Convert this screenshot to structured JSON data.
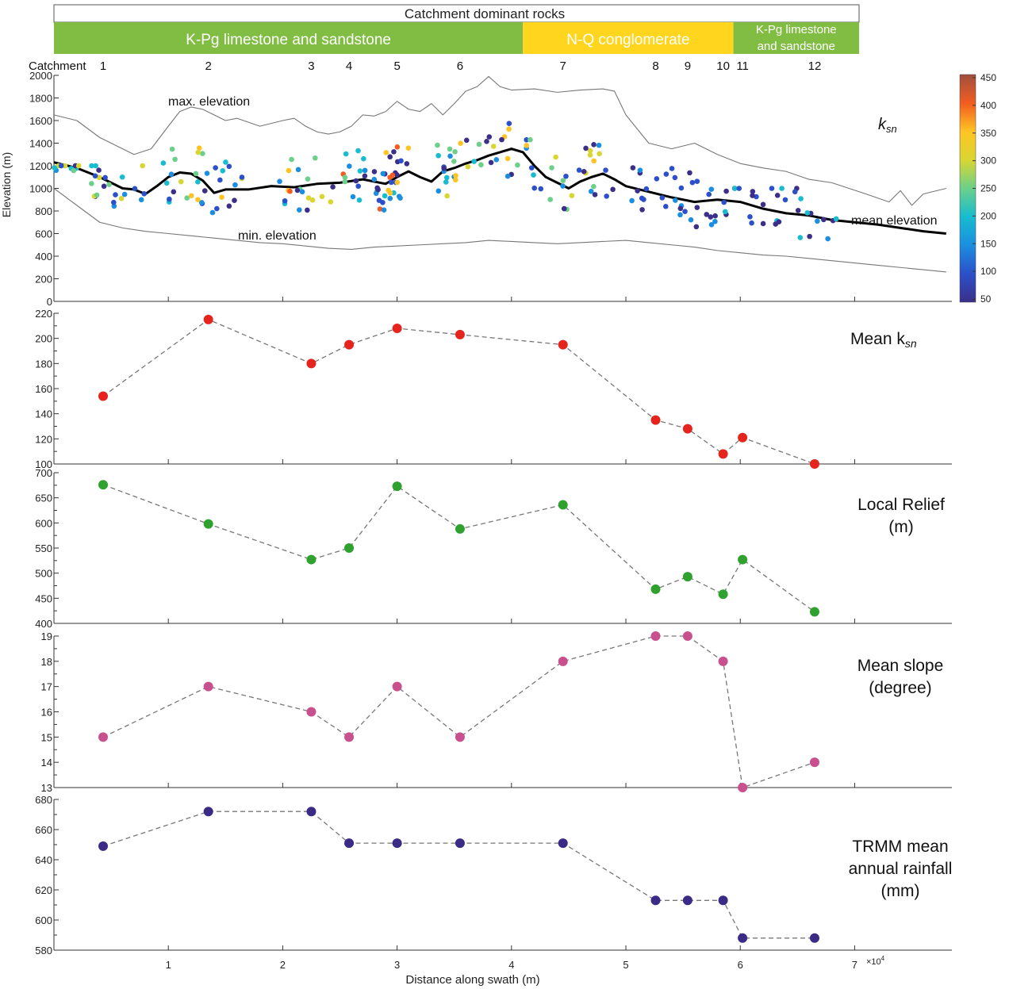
{
  "chart_data": [
    {
      "type": "table",
      "title": "Catchment dominant rocks",
      "segments": [
        {
          "label": "K-Pg limestone and sandstone",
          "x_start": 0,
          "x_end": 41000,
          "color": "#80bd42"
        },
        {
          "label": "N-Q conglomerate",
          "x_start": 41000,
          "x_end": 59400,
          "color": "#ffd51e"
        },
        {
          "label_lines": [
            "K-Pg limestone",
            "and sandstone"
          ],
          "x_start": 59400,
          "x_end": 70500,
          "color": "#80bd42"
        }
      ]
    },
    {
      "type": "line",
      "ylabel": "Elevation (m)",
      "ylim": [
        0,
        2000
      ],
      "xlim": [
        0,
        78500
      ],
      "yticks": [
        0,
        200,
        400,
        600,
        800,
        1000,
        1200,
        1400,
        1600,
        1800,
        2000
      ],
      "catchment_label": "Catchment",
      "catchments": [
        {
          "id": "1",
          "x": 4300
        },
        {
          "id": "2",
          "x": 13500
        },
        {
          "id": "3",
          "x": 22500
        },
        {
          "id": "4",
          "x": 25800
        },
        {
          "id": "5",
          "x": 30000
        },
        {
          "id": "6",
          "x": 35500
        },
        {
          "id": "7",
          "x": 44500
        },
        {
          "id": "8",
          "x": 52600
        },
        {
          "id": "9",
          "x": 55400
        },
        {
          "id": "10",
          "x": 58500
        },
        {
          "id": "11",
          "x": 60200
        },
        {
          "id": "12",
          "x": 66500
        }
      ],
      "series": [
        {
          "name": "max. elevation",
          "color": "#777777",
          "x": [
            0,
            2000,
            4000,
            7000,
            8500,
            10000,
            11000,
            12000,
            13000,
            14000,
            15000,
            16000,
            18000,
            20000,
            21000,
            22000,
            23000,
            24000,
            25000,
            26000,
            27000,
            28000,
            29000,
            30000,
            31000,
            32000,
            33000,
            34000,
            35000,
            36000,
            37000,
            38000,
            39000,
            40000,
            42000,
            44000,
            46000,
            48000,
            49000,
            50000,
            52000,
            54000,
            56000,
            58000,
            60000,
            62000,
            64000,
            66000,
            68000,
            71000,
            73000,
            74000,
            75000,
            76000,
            78000
          ],
          "y": [
            1650,
            1600,
            1450,
            1300,
            1350,
            1550,
            1680,
            1720,
            1700,
            1650,
            1600,
            1620,
            1550,
            1600,
            1620,
            1550,
            1500,
            1480,
            1500,
            1550,
            1650,
            1640,
            1680,
            1770,
            1700,
            1680,
            1750,
            1650,
            1750,
            1860,
            1900,
            1990,
            1900,
            1870,
            1880,
            1850,
            1870,
            1880,
            1860,
            1650,
            1400,
            1350,
            1400,
            1300,
            1220,
            1180,
            1150,
            1080,
            1050,
            950,
            880,
            980,
            850,
            950,
            1000
          ]
        },
        {
          "name": "mean elevation",
          "color": "#000000",
          "x": [
            0,
            2000,
            4000,
            6000,
            7000,
            8000,
            9000,
            10000,
            11000,
            12000,
            13000,
            14000,
            15000,
            17000,
            19000,
            21000,
            23000,
            25000,
            27000,
            29000,
            30000,
            31000,
            32000,
            33000,
            34000,
            35000,
            36000,
            37000,
            38000,
            39000,
            40000,
            41000,
            42000,
            43000,
            44000,
            45000,
            46000,
            47000,
            48000,
            49000,
            50000,
            52000,
            54000,
            56000,
            58000,
            60000,
            62000,
            64000,
            66000,
            68000,
            70000,
            72000,
            74000,
            76000,
            78000
          ],
          "y": [
            1230,
            1180,
            1100,
            1000,
            990,
            950,
            1020,
            1100,
            1140,
            1130,
            1070,
            960,
            990,
            990,
            1020,
            1010,
            1040,
            1050,
            1080,
            1040,
            1100,
            1150,
            1100,
            1060,
            1150,
            1180,
            1220,
            1250,
            1290,
            1320,
            1350,
            1320,
            1200,
            1100,
            1050,
            1000,
            1060,
            1100,
            1130,
            1080,
            1020,
            970,
            920,
            880,
            900,
            880,
            820,
            780,
            760,
            720,
            700,
            680,
            650,
            620,
            600
          ]
        },
        {
          "name": "min. elevation",
          "color": "#777777",
          "x": [
            0,
            2000,
            4000,
            6000,
            8000,
            10000,
            12000,
            14000,
            16000,
            18000,
            20000,
            22000,
            24000,
            26000,
            28000,
            30000,
            32000,
            34000,
            36000,
            38000,
            40000,
            42000,
            44000,
            46000,
            48000,
            50000,
            52000,
            54000,
            56000,
            58000,
            60000,
            62000,
            64000,
            66000,
            68000,
            70000,
            72000,
            74000,
            76000,
            78000
          ],
          "y": [
            1000,
            850,
            700,
            650,
            620,
            600,
            580,
            560,
            540,
            520,
            510,
            490,
            470,
            460,
            480,
            490,
            500,
            510,
            520,
            540,
            530,
            520,
            510,
            520,
            530,
            540,
            520,
            500,
            480,
            450,
            430,
            410,
            400,
            380,
            360,
            340,
            320,
            300,
            280,
            260
          ]
        }
      ],
      "points_color_scale": {
        "label": "ksn",
        "label_main": "k",
        "label_sub": "sn",
        "ticks": [
          50,
          100,
          150,
          200,
          250,
          300,
          350,
          400,
          450
        ],
        "colors": [
          "#3b2f8a",
          "#2c50c9",
          "#1b8ee0",
          "#17bccf",
          "#6cd08b",
          "#d9d632",
          "#ffc424",
          "#f25c20",
          "#a04f40"
        ]
      },
      "annotations": [
        "max. elevation",
        "mean elevation",
        "min. elevation"
      ]
    },
    {
      "type": "scatter",
      "title": "Mean ksn",
      "title_main": "Mean k",
      "title_sub": "sn",
      "color": "#e5241e",
      "ylim": [
        100,
        220
      ],
      "yticks": [
        100,
        120,
        140,
        160,
        180,
        200,
        220
      ],
      "x": [
        4300,
        13500,
        22500,
        25800,
        30000,
        35500,
        44500,
        52600,
        55400,
        58500,
        60200,
        66500
      ],
      "y": [
        154,
        215,
        180,
        195,
        208,
        203,
        195,
        135,
        128,
        108,
        121,
        100
      ]
    },
    {
      "type": "scatter",
      "title_lines": [
        "Local Relief",
        "(m)"
      ],
      "color": "#2ea12f",
      "ylim": [
        400,
        700
      ],
      "yticks": [
        400,
        450,
        500,
        550,
        600,
        650,
        700
      ],
      "x": [
        4300,
        13500,
        22500,
        25800,
        30000,
        35500,
        44500,
        52600,
        55400,
        58500,
        60200,
        66500
      ],
      "y": [
        676,
        598,
        527,
        550,
        673,
        588,
        636,
        468,
        493,
        458,
        527,
        423
      ]
    },
    {
      "type": "scatter",
      "title_lines": [
        "Mean slope",
        "(degree)"
      ],
      "color": "#c9508f",
      "ylim": [
        13,
        19
      ],
      "yticks": [
        13,
        14,
        15,
        16,
        17,
        18,
        19
      ],
      "x": [
        4300,
        13500,
        22500,
        25800,
        30000,
        35500,
        44500,
        52600,
        55400,
        58500,
        60200,
        66500
      ],
      "y": [
        15,
        17,
        16,
        15,
        17,
        15,
        18,
        19,
        19,
        18,
        13,
        14
      ]
    },
    {
      "type": "scatter",
      "title_lines": [
        "TRMM mean",
        "annual rainfall",
        "(mm)"
      ],
      "color": "#3b2b86",
      "xlabel": "Distance along swath (m)",
      "x_exponent_label": "×10",
      "x_exponent_power": "4",
      "xticks": [
        1,
        2,
        3,
        4,
        5,
        6,
        7
      ],
      "ylim": [
        580,
        680
      ],
      "yticks": [
        580,
        600,
        620,
        640,
        660,
        680
      ],
      "x": [
        4300,
        13500,
        22500,
        25800,
        30000,
        35500,
        44500,
        52600,
        55400,
        58500,
        60200,
        66500
      ],
      "y": [
        649,
        672,
        672,
        651,
        651,
        651,
        651,
        613,
        613,
        613,
        588,
        588
      ]
    }
  ]
}
